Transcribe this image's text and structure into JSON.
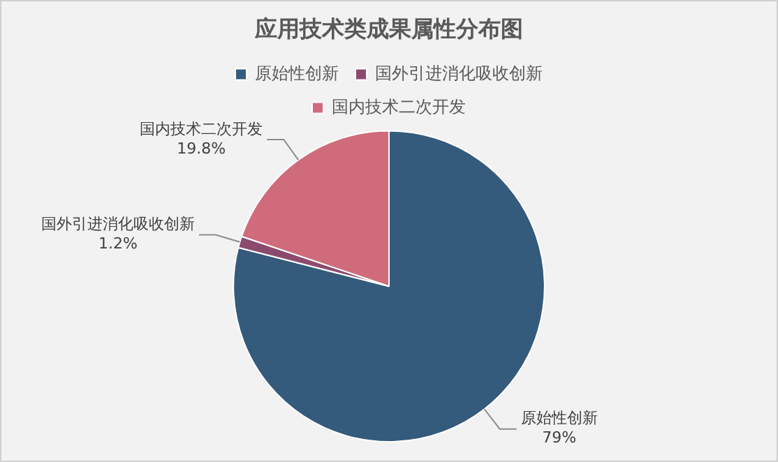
{
  "chart_data": {
    "type": "pie",
    "title": "应用技术类成果属性分布图",
    "categories": [
      "原始性创新",
      "国外引进消化吸收创新",
      "国内技术二次开发"
    ],
    "values": [
      79,
      1.2,
      19.8
    ],
    "colors": [
      "#345a7c",
      "#8b4a6e",
      "#d06b7c"
    ],
    "value_labels": [
      "79%",
      "1.2%",
      "19.8%"
    ],
    "legend": "top"
  }
}
